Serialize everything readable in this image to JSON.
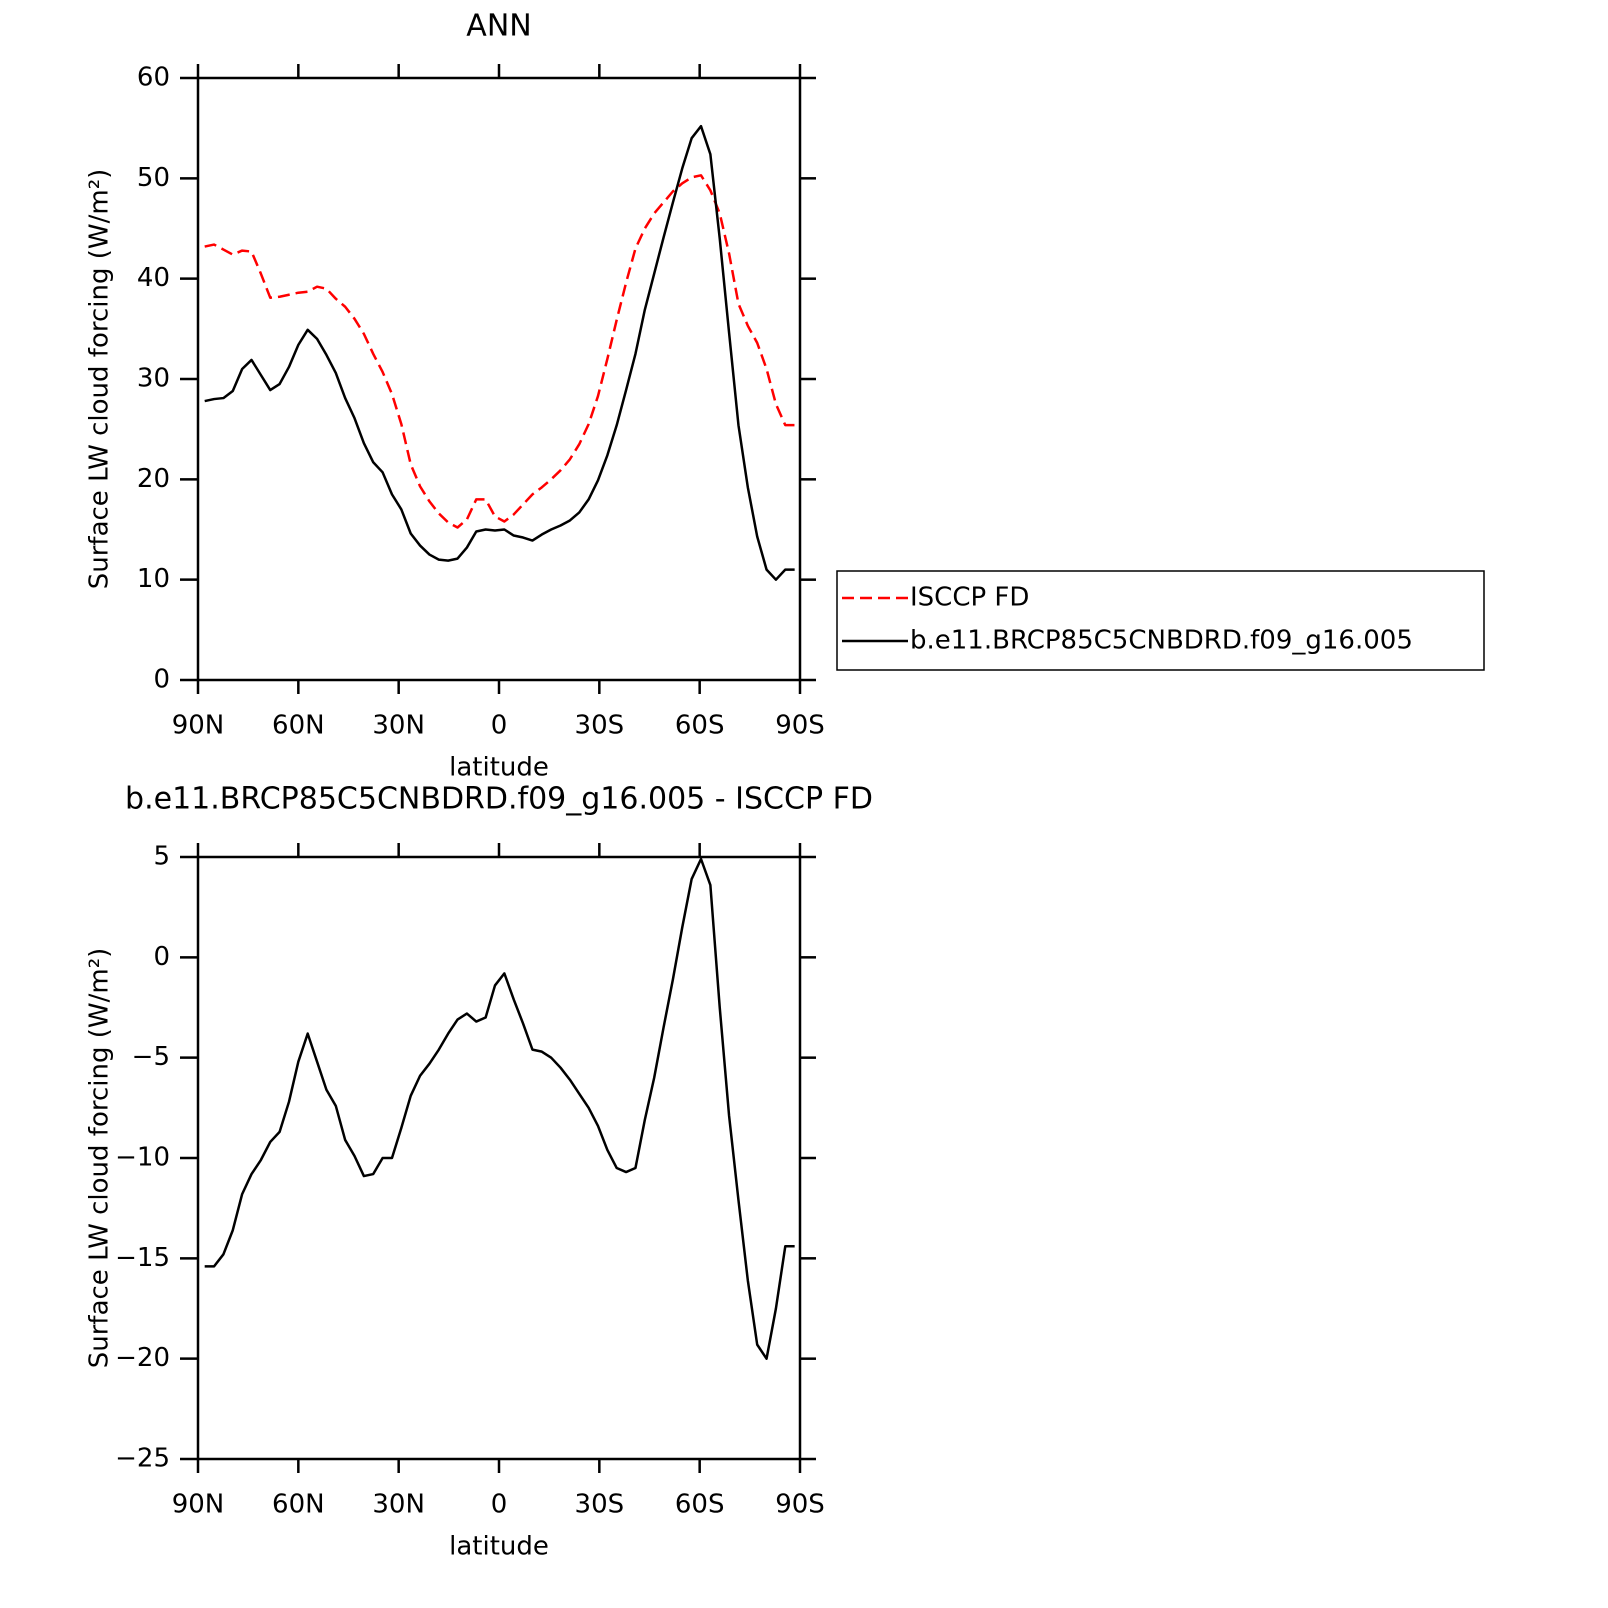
{
  "chart_data": [
    {
      "type": "line",
      "title": "ANN",
      "x_label": "latitude",
      "y_label": "Surface LW cloud forcing (W/m²)",
      "x": [
        88,
        85.2,
        82.4,
        79.6,
        76.8,
        74,
        71.2,
        68.4,
        65.6,
        62.8,
        60,
        57.2,
        54.4,
        51.6,
        48.8,
        46,
        43.2,
        40.4,
        37.6,
        34.8,
        32,
        29.2,
        26.4,
        23.6,
        20.8,
        18,
        15.2,
        12.4,
        9.6,
        6.8,
        4,
        1.2,
        -1.6,
        -4.4,
        -7.2,
        -10,
        -12.8,
        -15.6,
        -18.4,
        -21.2,
        -24,
        -26.8,
        -29.6,
        -32.4,
        -35.2,
        -38,
        -40.8,
        -43.6,
        -46.4,
        -49.2,
        -52,
        -54.8,
        -57.6,
        -60.4,
        -63.2,
        -66,
        -68.8,
        -71.6,
        -74.4,
        -77.2,
        -80,
        -82.8,
        -85.6,
        -88.4
      ],
      "series": [
        {
          "name": "ISCCP FD",
          "color": "#ff0000",
          "dash": true,
          "values": [
            43.2,
            43.4,
            42.9,
            42.4,
            42.8,
            42.7,
            40.5,
            38.1,
            38.2,
            38.4,
            38.6,
            38.7,
            39.2,
            39,
            38,
            37.2,
            36,
            34.5,
            32.5,
            30.7,
            28.5,
            25.5,
            21.5,
            19.3,
            17.8,
            16.6,
            15.7,
            15.2,
            16,
            18,
            18,
            16.3,
            15.8,
            16.5,
            17.5,
            18.5,
            19.2,
            20,
            20.9,
            22,
            23.5,
            25.5,
            28.3,
            32,
            35.9,
            39.6,
            43,
            45,
            46.5,
            47.6,
            48.7,
            49.5,
            50.1,
            50.3,
            48.8,
            46.5,
            42.5,
            37.5,
            35.3,
            33.6,
            31,
            27.5,
            25.4,
            25.4
          ]
        },
        {
          "name": "b.e11.BRCP85C5CNBDRD.f09_g16.005",
          "color": "#000000",
          "dash": false,
          "values": [
            27.8,
            28,
            28.1,
            28.8,
            31,
            31.9,
            30.4,
            28.9,
            29.5,
            31.2,
            33.4,
            34.9,
            34,
            32.4,
            30.6,
            28.1,
            26.1,
            23.6,
            21.7,
            20.7,
            18.5,
            17,
            14.6,
            13.4,
            12.5,
            12,
            11.9,
            12.1,
            13.2,
            14.8,
            15,
            14.9,
            15,
            14.4,
            14.2,
            13.9,
            14.5,
            15,
            15.4,
            15.9,
            16.7,
            18,
            19.9,
            22.4,
            25.4,
            28.9,
            32.5,
            36.9,
            40.5,
            44.1,
            47.6,
            51,
            54,
            55.2,
            52.4,
            44,
            34.6,
            25.4,
            19.2,
            14.3,
            11,
            10,
            11,
            11
          ]
        }
      ],
      "xlim": [
        90,
        -90
      ],
      "xticks": [
        {
          "value": 90,
          "label": "90N"
        },
        {
          "value": 60,
          "label": "60N"
        },
        {
          "value": 30,
          "label": "30N"
        },
        0,
        {
          "value": -30,
          "label": "30S"
        },
        {
          "value": -60,
          "label": "60S"
        },
        {
          "value": -90,
          "label": "90S"
        }
      ],
      "ylim": [
        0,
        60
      ],
      "yticks": [
        0,
        10,
        20,
        30,
        40,
        50,
        60
      ],
      "grid": false,
      "legend": "outside right"
    },
    {
      "type": "line",
      "title": "b.e11.BRCP85C5CNBDRD.f09_g16.005 - ISCCP FD",
      "x_label": "latitude",
      "y_label": "Surface LW cloud forcing (W/m²)",
      "x": [
        88,
        85.2,
        82.4,
        79.6,
        76.8,
        74,
        71.2,
        68.4,
        65.6,
        62.8,
        60,
        57.2,
        54.4,
        51.6,
        48.8,
        46,
        43.2,
        40.4,
        37.6,
        34.8,
        32,
        29.2,
        26.4,
        23.6,
        20.8,
        18,
        15.2,
        12.4,
        9.6,
        6.8,
        4,
        1.2,
        -1.6,
        -4.4,
        -7.2,
        -10,
        -12.8,
        -15.6,
        -18.4,
        -21.2,
        -24,
        -26.8,
        -29.6,
        -32.4,
        -35.2,
        -38,
        -40.8,
        -43.6,
        -46.4,
        -49.2,
        -52,
        -54.8,
        -57.6,
        -60.4,
        -63.2,
        -66,
        -68.8,
        -71.6,
        -74.4,
        -77.2,
        -80,
        -82.8,
        -85.6,
        -88.4
      ],
      "values": [
        -15.4,
        -15.4,
        -14.8,
        -13.6,
        -11.8,
        -10.8,
        -10.1,
        -9.2,
        -8.7,
        -7.2,
        -5.2,
        -3.8,
        -5.2,
        -6.6,
        -7.4,
        -9.1,
        -9.9,
        -10.9,
        -10.8,
        -10,
        -10,
        -8.5,
        -6.9,
        -5.9,
        -5.3,
        -4.6,
        -3.8,
        -3.1,
        -2.8,
        -3.2,
        -3,
        -1.4,
        -0.8,
        -2.1,
        -3.3,
        -4.6,
        -4.7,
        -5,
        -5.5,
        -6.1,
        -6.8,
        -7.5,
        -8.4,
        -9.6,
        -10.5,
        -10.7,
        -10.5,
        -8.1,
        -6,
        -3.5,
        -1.1,
        1.5,
        3.9,
        4.9,
        3.6,
        -2.5,
        -7.9,
        -12.1,
        -16.1,
        -19.3,
        -20,
        -17.5,
        -14.4,
        -14.4
      ],
      "color": "#000000",
      "xlim": [
        90,
        -90
      ],
      "xticks": [
        {
          "value": 90,
          "label": "90N"
        },
        {
          "value": 60,
          "label": "60N"
        },
        {
          "value": 30,
          "label": "30N"
        },
        0,
        {
          "value": -30,
          "label": "30S"
        },
        {
          "value": -60,
          "label": "60S"
        },
        {
          "value": -90,
          "label": "90S"
        }
      ],
      "ylim": [
        -25,
        5
      ],
      "yticks": [
        {
          "value": -25,
          "label": "−25"
        },
        {
          "value": -20,
          "label": "−20"
        },
        {
          "value": -15,
          "label": "−15"
        },
        {
          "value": -10,
          "label": "−10"
        },
        {
          "value": -5,
          "label": "−5"
        },
        0,
        5
      ],
      "grid": false
    }
  ]
}
